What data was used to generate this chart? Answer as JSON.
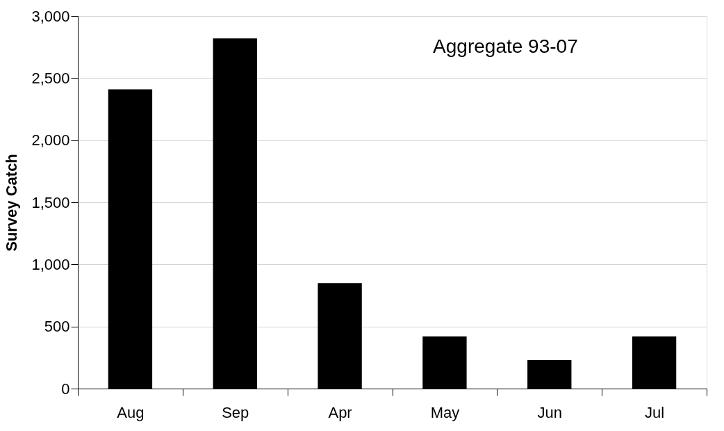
{
  "chart_data": {
    "type": "bar",
    "ylabel": "Survey Catch",
    "categories": [
      "Aug",
      "Sep",
      "Apr",
      "May",
      "Jun",
      "Jul"
    ],
    "values": [
      2410,
      2820,
      850,
      420,
      230,
      420
    ],
    "color": "#000000",
    "ylim": [
      0,
      3000
    ],
    "yticks": [
      0,
      500,
      {
        "value": 1000,
        "label": "1,000"
      },
      {
        "value": 1500,
        "label": "1,500"
      },
      {
        "value": 2000,
        "label": "2,000"
      },
      {
        "value": 2500,
        "label": "2,500"
      },
      {
        "value": 3000,
        "label": "3,000"
      }
    ],
    "grid": "y",
    "annotations": [
      "Aggregate 93-07"
    ]
  }
}
